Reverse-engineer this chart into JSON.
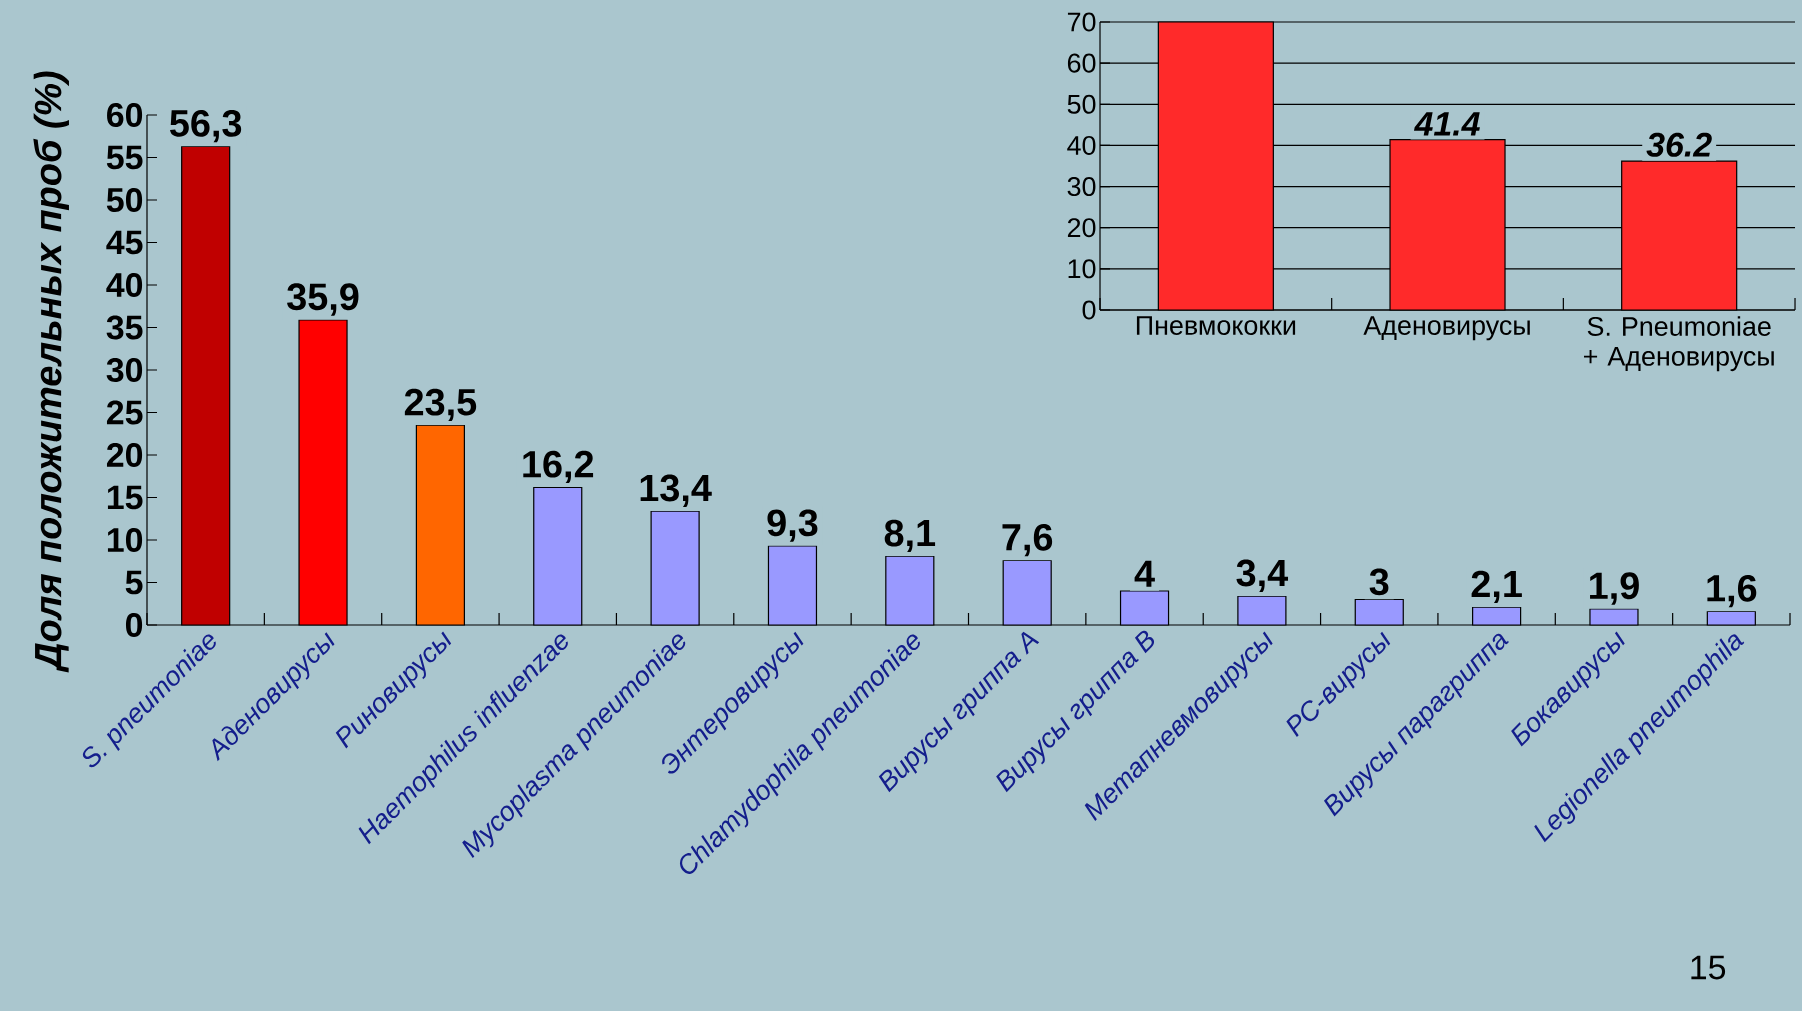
{
  "chart_data": [
    {
      "type": "bar",
      "ylabel": "Доля положительных проб (%)",
      "categories": [
        "S. pneumoniae",
        "Аденовирусы",
        "Риновирусы",
        "Haemophilus influenzae",
        "Mycoplasma pneumoniae",
        "Энтеровирусы",
        "Chlamydophila pneumoniae",
        "Вирусы гриппа A",
        "Вирусы гриппа B",
        "Метапневмовирусы",
        "РС-вирусы",
        "Вирусы парагриппа",
        "Бокавирусы",
        "Legionella pneumophila"
      ],
      "values": [
        56.3,
        35.9,
        23.5,
        16.2,
        13.4,
        9.3,
        8.1,
        7.6,
        4,
        3.4,
        3,
        2.1,
        1.9,
        1.6
      ],
      "value_labels": [
        "56,3",
        "35,9",
        "23,5",
        "16,2",
        "13,4",
        "9,3",
        "8,1",
        "7,6",
        "4",
        "3,4",
        "3",
        "2,1",
        "1,9",
        "1,6"
      ],
      "colors": [
        "#c00000",
        "#ff0000",
        "#ff6600",
        "#9999ff",
        "#9999ff",
        "#9999ff",
        "#9999ff",
        "#9999ff",
        "#9999ff",
        "#9999ff",
        "#9999ff",
        "#9999ff",
        "#9999ff",
        "#9999ff"
      ],
      "ylim": [
        0,
        60
      ],
      "yticks": [
        0,
        5,
        10,
        15,
        20,
        25,
        30,
        35,
        40,
        45,
        50,
        55,
        60
      ],
      "grid": false,
      "annotations": [
        "15"
      ]
    },
    {
      "type": "bar",
      "categories": [
        "Пневмококки",
        "Аденовирусы",
        "S. Pneumoniae + Аденовирусы"
      ],
      "values": [
        70,
        41.4,
        36.2
      ],
      "value_labels": [
        null,
        "41.4",
        "36.2"
      ],
      "color": "#ff2a2a",
      "ylim": [
        0,
        70
      ],
      "yticks": [
        0,
        10,
        20,
        30,
        40,
        50,
        60,
        70
      ],
      "grid": "y"
    }
  ]
}
